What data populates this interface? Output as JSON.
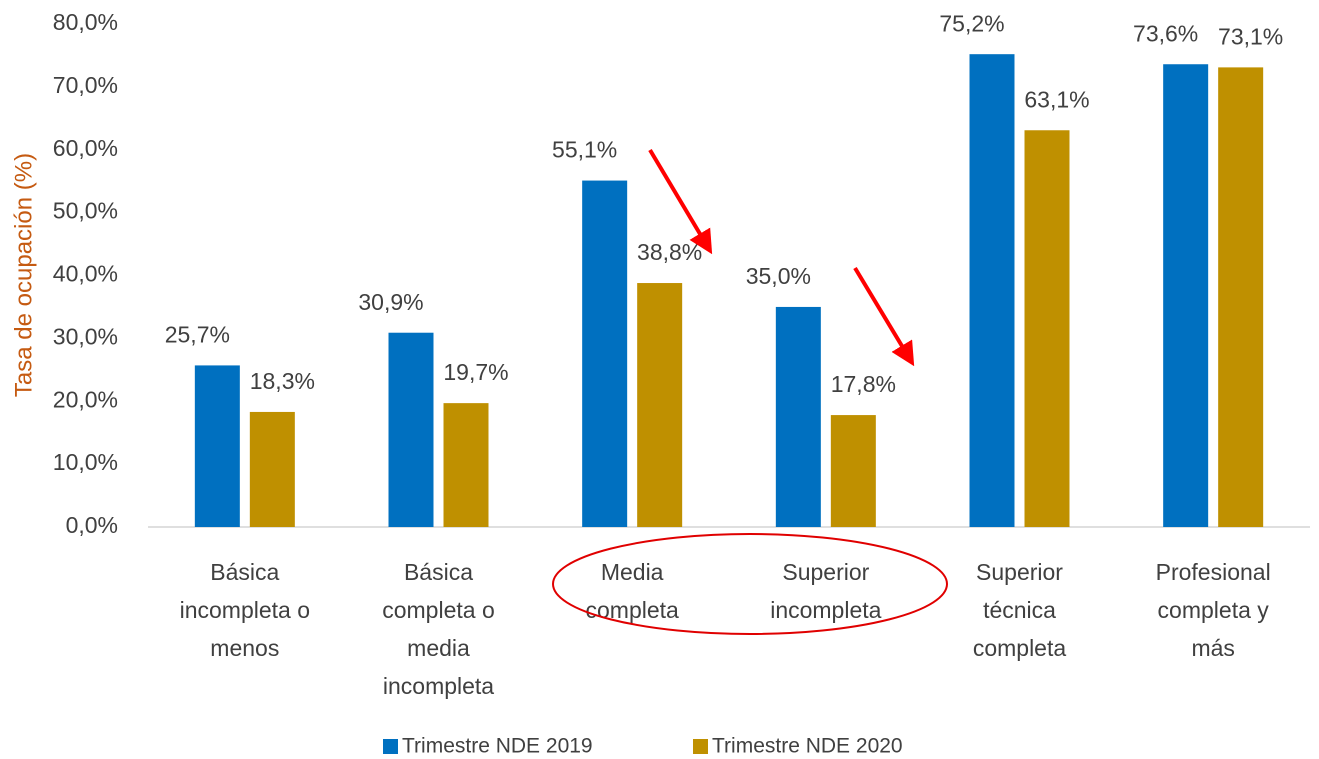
{
  "chart_data": {
    "type": "bar",
    "ylabel": "Tasa de ocupación (%)",
    "categories": [
      [
        "Básica",
        "incompleta o",
        "menos"
      ],
      [
        "Básica",
        "completa o",
        "media",
        "incompleta"
      ],
      [
        "Media",
        "completa"
      ],
      [
        "Superior",
        "incompleta"
      ],
      [
        "Superior",
        "técnica",
        "completa"
      ],
      [
        "Profesional",
        "completa y",
        "más"
      ]
    ],
    "series": [
      {
        "name": "Trimestre NDE 2019",
        "color": "#0070c0",
        "values": [
          25.7,
          30.9,
          55.1,
          35.0,
          75.2,
          73.6
        ],
        "value_labels": [
          "25,7%",
          "30,9%",
          "55,1%",
          "35,0%",
          "75,2%",
          "73,6%"
        ]
      },
      {
        "name": "Trimestre NDE 2020",
        "color": "#bf9000",
        "values": [
          18.3,
          19.7,
          38.8,
          17.8,
          63.1,
          73.1
        ],
        "value_labels": [
          "18,3%",
          "19,7%",
          "38,8%",
          "17,8%",
          "63,1%",
          "73,1%"
        ]
      }
    ],
    "ylim": [
      0,
      80
    ],
    "yticks": [
      {
        "value": 0,
        "label": "0,0%"
      },
      {
        "value": 10,
        "label": "10,0%"
      },
      {
        "value": 20,
        "label": "20,0%"
      },
      {
        "value": 30,
        "label": "30,0%"
      },
      {
        "value": 40,
        "label": "40,0%"
      },
      {
        "value": 50,
        "label": "50,0%"
      },
      {
        "value": 60,
        "label": "60,0%"
      },
      {
        "value": 70,
        "label": "70,0%"
      },
      {
        "value": 80,
        "label": "80,0%"
      }
    ],
    "legend": "bottom"
  }
}
